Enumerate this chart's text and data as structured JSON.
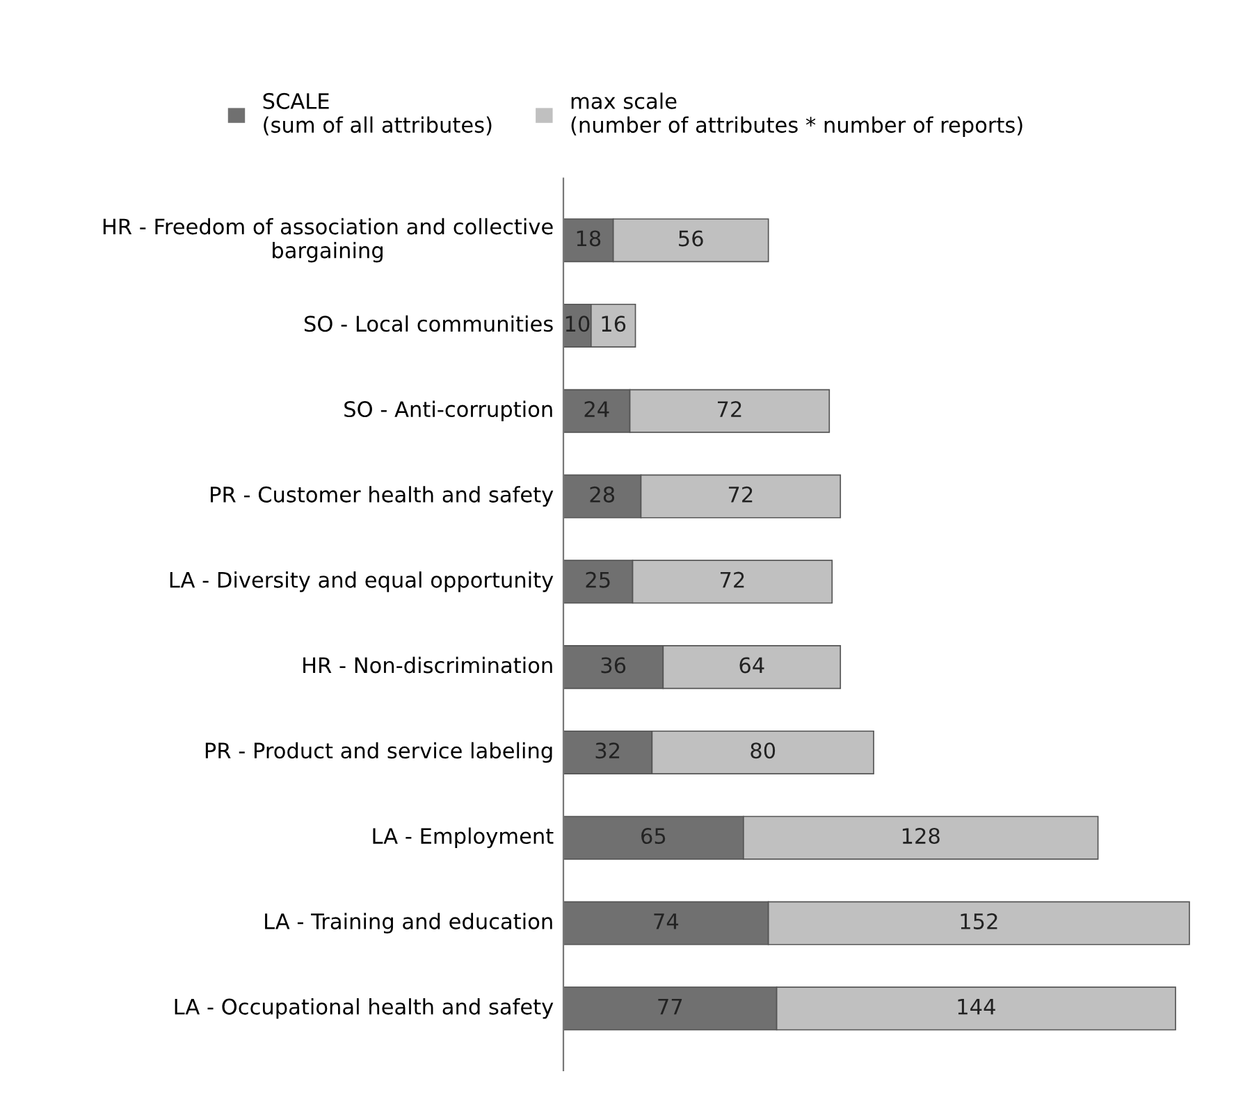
{
  "chart_data": {
    "type": "bar",
    "orientation": "horizontal",
    "stacked": true,
    "data_labels": true,
    "legend": "top",
    "grid": false,
    "categories": [
      "HR - Freedom of association and collective bargaining",
      "SO - Local communities",
      "SO - Anti-corruption",
      "PR - Customer health and safety",
      "LA - Diversity and equal opportunity",
      "HR - Non-discrimination",
      "PR - Product and service labeling",
      "LA - Employment",
      "LA - Training and education",
      "LA - Occupational health and safety"
    ],
    "series": [
      {
        "name": "SCALE\n(sum of all attributes)",
        "color": "#707070",
        "values": [
          18,
          10,
          24,
          28,
          25,
          36,
          32,
          65,
          74,
          77
        ]
      },
      {
        "name": "max scale\n(number of attributes * number of reports)",
        "color": "#c0c0c0",
        "values": [
          56,
          16,
          72,
          72,
          72,
          64,
          80,
          128,
          152,
          144
        ]
      }
    ]
  }
}
